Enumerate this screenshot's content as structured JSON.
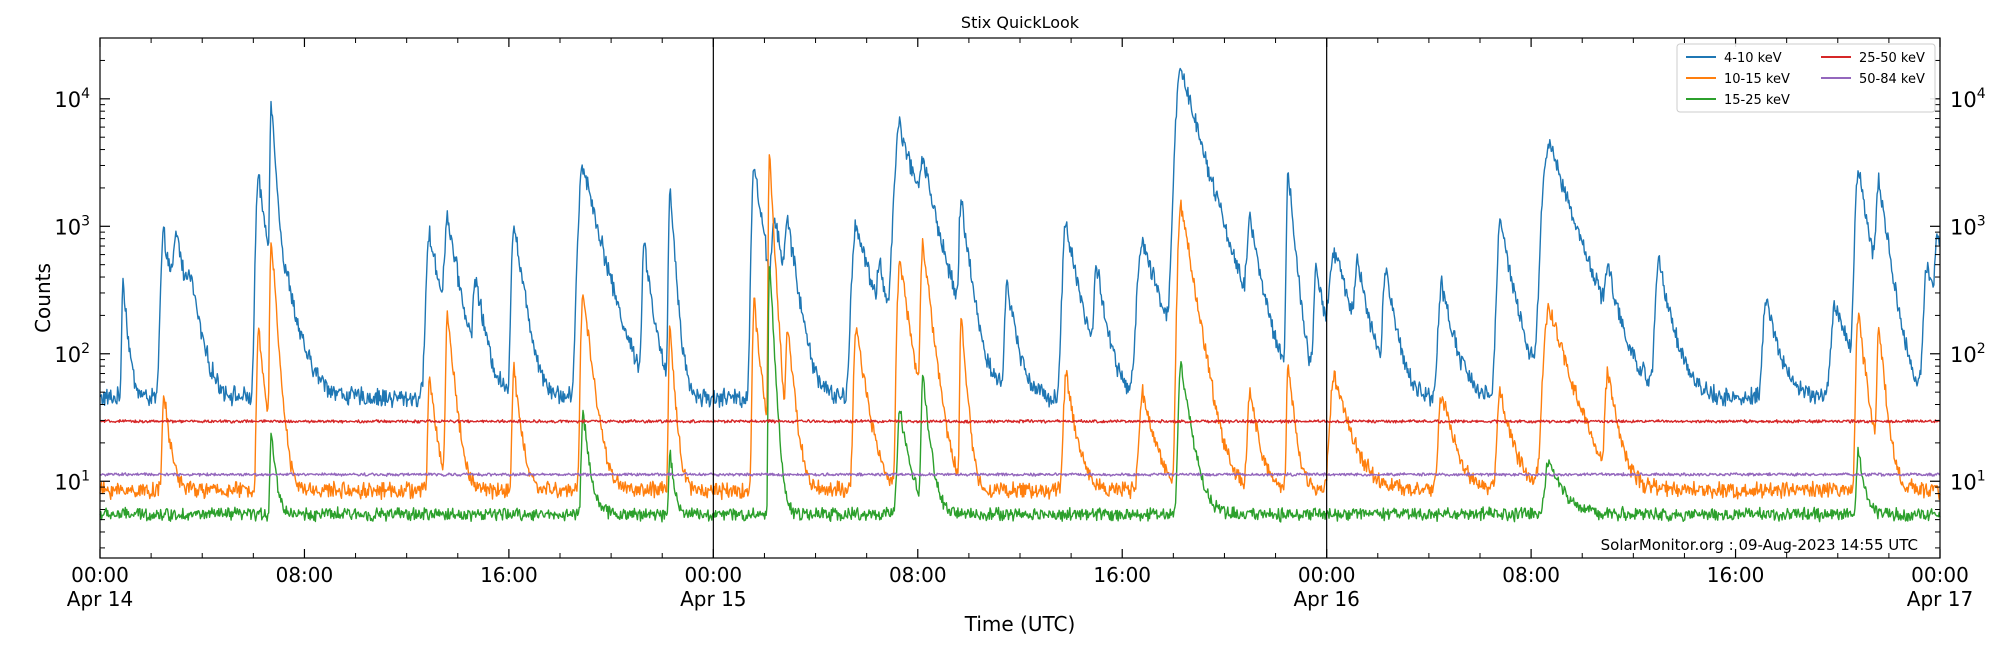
{
  "chart_data": {
    "type": "line",
    "title": "Stix QuickLook",
    "xlabel": "Time (UTC)",
    "ylabel": "Counts",
    "yscale": "log",
    "ylim": [
      2.5,
      30000
    ],
    "xlim_hours": [
      0,
      72
    ],
    "grid": false,
    "legend_position": "top-right",
    "credit": "SolarMonitor.org : 09-Aug-2023 14:55 UTC",
    "day_dividers_hours": [
      24,
      48
    ],
    "x_ticks": [
      {
        "hour": 0,
        "label": "00:00",
        "sublabel": "Apr 14"
      },
      {
        "hour": 8,
        "label": "08:00",
        "sublabel": ""
      },
      {
        "hour": 16,
        "label": "16:00",
        "sublabel": ""
      },
      {
        "hour": 24,
        "label": "00:00",
        "sublabel": "Apr 15"
      },
      {
        "hour": 32,
        "label": "08:00",
        "sublabel": ""
      },
      {
        "hour": 40,
        "label": "16:00",
        "sublabel": ""
      },
      {
        "hour": 48,
        "label": "00:00",
        "sublabel": "Apr 16"
      },
      {
        "hour": 56,
        "label": "08:00",
        "sublabel": ""
      },
      {
        "hour": 64,
        "label": "16:00",
        "sublabel": ""
      },
      {
        "hour": 72,
        "label": "00:00",
        "sublabel": "Apr 17"
      }
    ],
    "y_ticks": [
      {
        "value": 10,
        "base": "10",
        "exp": "1"
      },
      {
        "value": 100,
        "base": "10",
        "exp": "2"
      },
      {
        "value": 1000,
        "base": "10",
        "exp": "3"
      },
      {
        "value": 10000,
        "base": "10",
        "exp": "4"
      }
    ],
    "series": [
      {
        "name": "4-10 keV",
        "color": "#1f77b4",
        "baseline": 45,
        "noise": 0.12,
        "flares": [
          [
            0.9,
            350,
            0.15
          ],
          [
            2.5,
            800,
            0.35
          ],
          [
            3.0,
            650,
            0.35
          ],
          [
            3.5,
            230,
            0.3
          ],
          [
            6.2,
            2300,
            0.3
          ],
          [
            6.7,
            9000,
            0.15
          ],
          [
            7.4,
            200,
            0.5
          ],
          [
            12.9,
            800,
            0.4
          ],
          [
            13.6,
            1000,
            0.35
          ],
          [
            14.7,
            300,
            0.3
          ],
          [
            16.2,
            1000,
            0.3
          ],
          [
            18.9,
            3000,
            0.5
          ],
          [
            21.3,
            650,
            0.25
          ],
          [
            22.3,
            2000,
            0.15
          ],
          [
            25.6,
            2900,
            0.3
          ],
          [
            26.4,
            1000,
            0.3
          ],
          [
            26.9,
            900,
            0.3
          ],
          [
            29.6,
            1000,
            0.5
          ],
          [
            30.5,
            350,
            0.25
          ],
          [
            31.3,
            6000,
            0.6
          ],
          [
            32.2,
            2000,
            0.4
          ],
          [
            33.7,
            1400,
            0.25
          ],
          [
            35.5,
            300,
            0.3
          ],
          [
            37.8,
            1000,
            0.4
          ],
          [
            39.0,
            400,
            0.3
          ],
          [
            40.8,
            700,
            0.6
          ],
          [
            42.3,
            17000,
            0.6
          ],
          [
            45.0,
            900,
            0.35
          ],
          [
            46.5,
            2500,
            0.2
          ],
          [
            47.6,
            400,
            0.3
          ],
          [
            48.3,
            550,
            0.6
          ],
          [
            49.2,
            400,
            0.3
          ],
          [
            50.3,
            400,
            0.3
          ],
          [
            52.5,
            300,
            0.4
          ],
          [
            54.8,
            1000,
            0.4
          ],
          [
            56.7,
            4500,
            0.7
          ],
          [
            59.0,
            300,
            0.3
          ],
          [
            61.0,
            500,
            0.4
          ],
          [
            65.2,
            220,
            0.4
          ],
          [
            67.9,
            200,
            0.5
          ],
          [
            68.8,
            2800,
            0.35
          ],
          [
            69.6,
            2000,
            0.3
          ],
          [
            71.5,
            450,
            0.4
          ],
          [
            71.9,
            700,
            0.3
          ]
        ]
      },
      {
        "name": "10-15 keV",
        "color": "#ff7f0e",
        "baseline": 8.5,
        "noise": 0.1,
        "flares": [
          [
            2.5,
            40,
            0.2
          ],
          [
            6.2,
            150,
            0.2
          ],
          [
            6.7,
            800,
            0.15
          ],
          [
            12.9,
            60,
            0.2
          ],
          [
            13.6,
            200,
            0.2
          ],
          [
            16.2,
            70,
            0.2
          ],
          [
            18.9,
            300,
            0.25
          ],
          [
            22.3,
            150,
            0.15
          ],
          [
            25.6,
            250,
            0.2
          ],
          [
            26.2,
            3500,
            0.12
          ],
          [
            26.9,
            150,
            0.2
          ],
          [
            29.6,
            150,
            0.3
          ],
          [
            31.3,
            550,
            0.3
          ],
          [
            32.2,
            700,
            0.25
          ],
          [
            33.7,
            200,
            0.15
          ],
          [
            37.8,
            60,
            0.3
          ],
          [
            40.8,
            40,
            0.4
          ],
          [
            42.3,
            1500,
            0.35
          ],
          [
            45.0,
            40,
            0.3
          ],
          [
            46.5,
            70,
            0.2
          ],
          [
            48.3,
            60,
            0.5
          ],
          [
            52.5,
            40,
            0.4
          ],
          [
            54.8,
            40,
            0.4
          ],
          [
            56.7,
            230,
            0.6
          ],
          [
            59.0,
            60,
            0.3
          ],
          [
            68.8,
            200,
            0.25
          ],
          [
            69.6,
            150,
            0.2
          ]
        ]
      },
      {
        "name": "15-25 keV",
        "color": "#2ca02c",
        "baseline": 5.5,
        "noise": 0.08,
        "flares": [
          [
            6.7,
            20,
            0.15
          ],
          [
            18.9,
            30,
            0.2
          ],
          [
            22.3,
            12,
            0.15
          ],
          [
            26.2,
            500,
            0.12
          ],
          [
            31.3,
            30,
            0.3
          ],
          [
            32.2,
            60,
            0.2
          ],
          [
            42.3,
            80,
            0.3
          ],
          [
            56.7,
            9,
            0.5
          ],
          [
            68.8,
            12,
            0.2
          ]
        ]
      },
      {
        "name": "25-50 keV",
        "color": "#d62728",
        "baseline": 29.5,
        "noise": 0.018,
        "flares": []
      },
      {
        "name": "50-84 keV",
        "color": "#9467bd",
        "baseline": 11.3,
        "noise": 0.018,
        "flares": []
      }
    ]
  }
}
